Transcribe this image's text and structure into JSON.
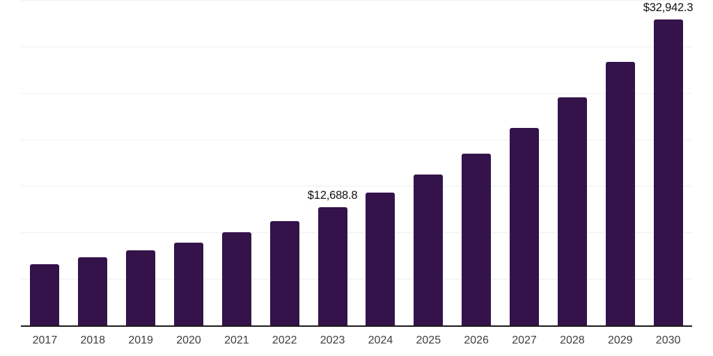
{
  "chart_data": {
    "type": "bar",
    "title": "",
    "xlabel": "",
    "ylabel": "",
    "categories": [
      "2017",
      "2018",
      "2019",
      "2020",
      "2021",
      "2022",
      "2023",
      "2024",
      "2025",
      "2026",
      "2027",
      "2028",
      "2029",
      "2030"
    ],
    "values": [
      6600,
      7300,
      8100,
      8900,
      10050,
      11200,
      12688.8,
      14250,
      16200,
      18500,
      21250,
      24500,
      28350,
      32942.3
    ],
    "data_labels": [
      "",
      "",
      "",
      "",
      "",
      "",
      "$12,688.8",
      "",
      "",
      "",
      "",
      "",
      "",
      "$32,942.3"
    ],
    "ylim": [
      0,
      35000
    ],
    "gridline_step": 5000,
    "grid": "horizontal",
    "legend": "none",
    "axis_ticks_y": "none",
    "colors": {
      "bar": "#34124a",
      "axis": "#1a1a1a",
      "gridline": "#f0f0f2",
      "data_label": "#111111",
      "tick_label": "#3d3d3d",
      "background": "#ffffff"
    }
  }
}
